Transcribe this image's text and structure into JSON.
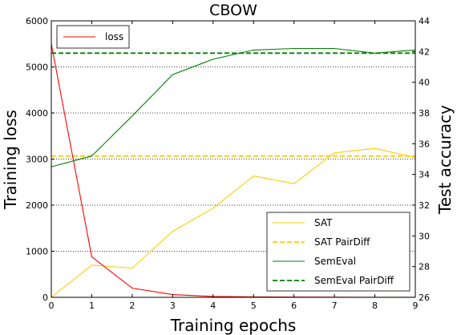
{
  "chart_data": {
    "type": "line",
    "title": "CBOW",
    "xlabel": "Training epochs",
    "ylabel_left": "Training loss",
    "ylabel_right": "Test accuracy",
    "x": [
      0,
      1,
      2,
      3,
      4,
      5,
      6,
      7,
      8,
      9
    ],
    "xlim": [
      0,
      9
    ],
    "ylim_left": [
      0,
      6000
    ],
    "ylim_right": [
      26,
      44
    ],
    "xticks": [
      "0",
      "1",
      "2",
      "3",
      "4",
      "5",
      "6",
      "7",
      "8",
      "9"
    ],
    "yticks_left": [
      "0",
      "1000",
      "2000",
      "3000",
      "4000",
      "5000",
      "6000"
    ],
    "yticks_right": [
      "26",
      "28",
      "30",
      "32",
      "34",
      "36",
      "38",
      "40",
      "42",
      "44"
    ],
    "grid": "horizontal dotted",
    "legend_left_position": "top-left",
    "legend_right_position": "bottom-right",
    "series_left": [
      {
        "name": "loss",
        "color": "#ff0000",
        "style": "solid",
        "values": [
          5500,
          880,
          200,
          60,
          20,
          10,
          5,
          3,
          2,
          1
        ]
      }
    ],
    "series_right": [
      {
        "name": "SAT",
        "color": "#ffcc00",
        "style": "solid",
        "values": [
          26.0,
          28.1,
          27.9,
          30.3,
          31.8,
          33.9,
          33.4,
          35.4,
          35.7,
          35.1
        ]
      },
      {
        "name": "SAT PairDiff",
        "color": "#ffcc00",
        "style": "dashed",
        "values": [
          35.2,
          35.2,
          35.2,
          35.2,
          35.2,
          35.2,
          35.2,
          35.2,
          35.2,
          35.2
        ]
      },
      {
        "name": "SemEval",
        "color": "#008000",
        "style": "solid",
        "values": [
          34.5,
          35.2,
          37.8,
          40.5,
          41.5,
          42.1,
          42.2,
          42.2,
          41.9,
          42.1
        ]
      },
      {
        "name": "SemEval PairDiff",
        "color": "#008000",
        "style": "dashed",
        "values": [
          41.9,
          41.9,
          41.9,
          41.9,
          41.9,
          41.9,
          41.9,
          41.9,
          41.9,
          41.9
        ]
      }
    ]
  }
}
